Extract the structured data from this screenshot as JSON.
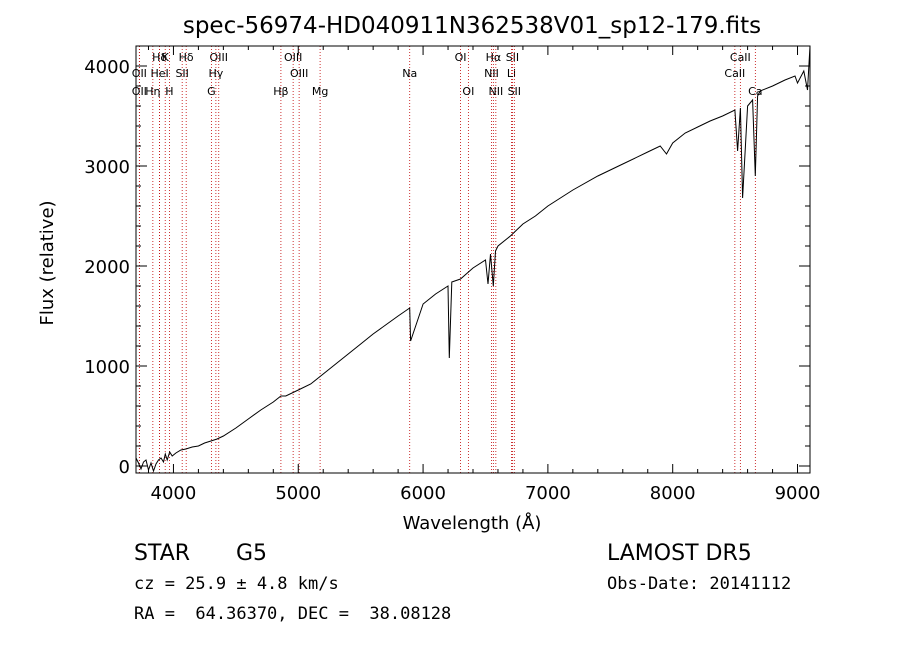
{
  "colors": {
    "background": "#ffffff",
    "spectrum": "#000000",
    "lines": "#c00000",
    "axis": "#000000"
  },
  "chart_data": {
    "type": "line",
    "title": "spec-56974-HD040911N362538V01_sp12-179.fits",
    "xlabel": "Wavelength (Å)",
    "ylabel": "Flux (relative)",
    "xlim": [
      3700,
      9100
    ],
    "ylim": [
      -70,
      4200
    ],
    "x_ticks": [
      4000,
      5000,
      6000,
      7000,
      8000,
      9000
    ],
    "y_ticks": [
      0,
      1000,
      2000,
      3000,
      4000
    ],
    "grid": false,
    "series": [
      {
        "x": [
          3700,
          3720,
          3740,
          3760,
          3780,
          3800,
          3820,
          3840,
          3860,
          3880,
          3900,
          3920,
          3935,
          3950,
          3970,
          3990,
          4020,
          4060,
          4100,
          4150,
          4200,
          4250,
          4300,
          4350,
          4400,
          4500,
          4600,
          4700,
          4800,
          4861,
          4900,
          5000,
          5100,
          5200,
          5300,
          5400,
          5500,
          5600,
          5700,
          5800,
          5893,
          5900,
          6000,
          6100,
          6200,
          6210,
          6230,
          6300,
          6400,
          6500,
          6520,
          6540,
          6563,
          6580,
          6600,
          6700,
          6800,
          6900,
          7000,
          7200,
          7400,
          7600,
          7800,
          7900,
          7950,
          8000,
          8100,
          8200,
          8300,
          8400,
          8498,
          8520,
          8542,
          8560,
          8600,
          8640,
          8662,
          8680,
          8700,
          8800,
          8900,
          8980,
          9000,
          9050,
          9080,
          9100
        ],
        "y": [
          80,
          30,
          -30,
          40,
          60,
          -40,
          30,
          -50,
          20,
          60,
          80,
          40,
          120,
          60,
          140,
          100,
          130,
          160,
          170,
          190,
          200,
          230,
          250,
          270,
          300,
          380,
          470,
          560,
          640,
          700,
          700,
          760,
          820,
          920,
          1020,
          1120,
          1220,
          1320,
          1410,
          1500,
          1580,
          1250,
          1620,
          1720,
          1800,
          1080,
          1840,
          1870,
          1980,
          2060,
          1820,
          2120,
          1800,
          2150,
          2200,
          2300,
          2420,
          2500,
          2600,
          2760,
          2900,
          3020,
          3140,
          3200,
          3120,
          3230,
          3330,
          3390,
          3450,
          3500,
          3560,
          3150,
          3580,
          2680,
          3600,
          3660,
          2900,
          3700,
          3750,
          3800,
          3860,
          3900,
          3830,
          3950,
          3760,
          4200
        ]
      }
    ],
    "spectral_lines": [
      {
        "label": "Hδ",
        "x": 3889,
        "row": 1
      },
      {
        "label": "K",
        "x": 3934,
        "row": 1
      },
      {
        "label": "Hδ",
        "x": 4102,
        "row": 1
      },
      {
        "label": "OIII",
        "x": 4363,
        "row": 1
      },
      {
        "label": "OIII",
        "x": 4959,
        "row": 1
      },
      {
        "label": "OI",
        "x": 6300,
        "row": 1
      },
      {
        "label": "Hα",
        "x": 6563,
        "row": 1
      },
      {
        "label": "SII",
        "x": 6716,
        "row": 1
      },
      {
        "label": "CaII",
        "x": 8542,
        "row": 1
      },
      {
        "label": "OII",
        "x": 3727,
        "row": 2
      },
      {
        "label": "HeI",
        "x": 3889,
        "row": 2
      },
      {
        "label": "SII",
        "x": 4070,
        "row": 2
      },
      {
        "label": "Hγ",
        "x": 4340,
        "row": 2
      },
      {
        "label": "OIII",
        "x": 5007,
        "row": 2
      },
      {
        "label": "Na",
        "x": 5893,
        "row": 2
      },
      {
        "label": "NII",
        "x": 6548,
        "row": 2
      },
      {
        "label": "Li",
        "x": 6708,
        "row": 2
      },
      {
        "label": "CaII",
        "x": 8498,
        "row": 2
      },
      {
        "label": "OII",
        "x": 3727,
        "row": 3
      },
      {
        "label": "Hη",
        "x": 3835,
        "row": 3
      },
      {
        "label": "H",
        "x": 3968,
        "row": 3
      },
      {
        "label": "G",
        "x": 4304,
        "row": 3
      },
      {
        "label": "Hβ",
        "x": 4861,
        "row": 3
      },
      {
        "label": "Mg",
        "x": 5175,
        "row": 3
      },
      {
        "label": "OI",
        "x": 6363,
        "row": 3
      },
      {
        "label": "NII",
        "x": 6583,
        "row": 3
      },
      {
        "label": "SII",
        "x": 6731,
        "row": 3
      },
      {
        "label": "Ca",
        "x": 8662,
        "row": 3
      }
    ]
  },
  "info": {
    "object_class": "STAR",
    "subclass": "G5",
    "survey": "LAMOST DR5",
    "cz": "cz = 25.9 ± 4.8 km/s",
    "obs_date": "Obs-Date: 20141112",
    "coords": "RA =  64.36370, DEC =  38.08128"
  }
}
